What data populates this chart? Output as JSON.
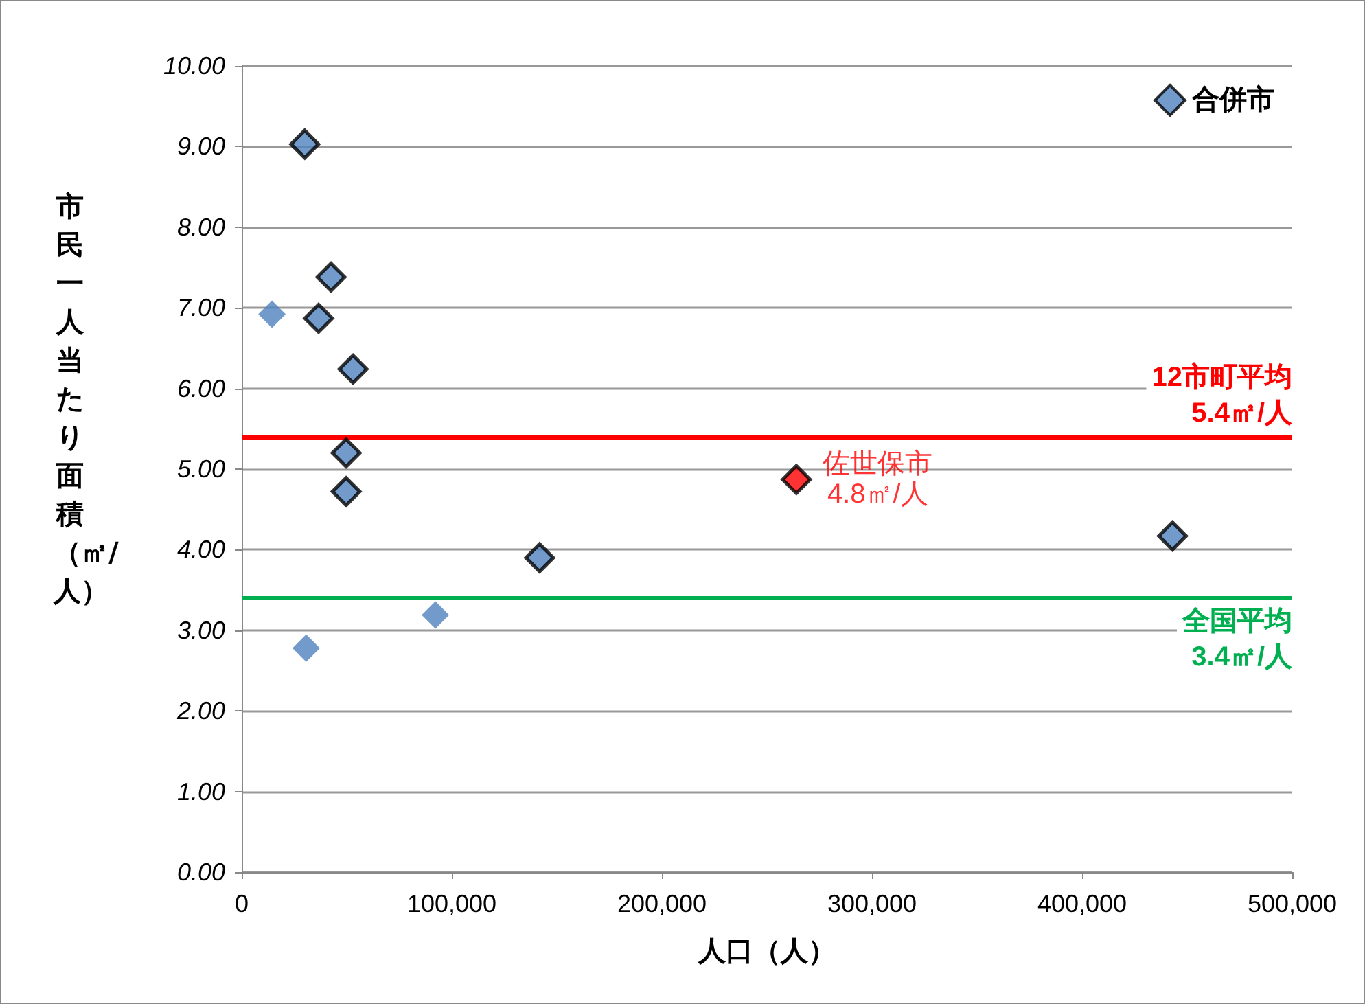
{
  "chart_data": {
    "type": "scatter",
    "xlabel": "人口（人）",
    "ylabel": "市民一人当たり面積（㎡/人）",
    "xlim": [
      0,
      500000
    ],
    "xticks": [
      {
        "value": 0,
        "label": "0"
      },
      {
        "value": 100000,
        "label": "100,000"
      },
      {
        "value": 200000,
        "label": "200,000"
      },
      {
        "value": 300000,
        "label": "300,000"
      },
      {
        "value": 400000,
        "label": "400,000"
      },
      {
        "value": 500000,
        "label": "500,000"
      }
    ],
    "ylim": [
      0,
      10
    ],
    "yticks": [
      {
        "value": 0,
        "label": "0.00"
      },
      {
        "value": 1,
        "label": "1.00"
      },
      {
        "value": 2,
        "label": "2.00"
      },
      {
        "value": 3,
        "label": "3.00"
      },
      {
        "value": 4,
        "label": "4.00"
      },
      {
        "value": 5,
        "label": "5.00"
      },
      {
        "value": 6,
        "label": "6.00"
      },
      {
        "value": 7,
        "label": "7.00"
      },
      {
        "value": 8,
        "label": "8.00"
      },
      {
        "value": 9,
        "label": "9.00"
      },
      {
        "value": 10,
        "label": "10.00"
      }
    ],
    "grid": "y",
    "legend": "top right",
    "marker": "diamond",
    "series": [
      {
        "name": "合併市",
        "color": "#4f81bd",
        "x": [
          30000,
          42500,
          36600,
          53000,
          49700,
          49700,
          141800,
          443000
        ],
        "values": [
          9.03,
          7.38,
          6.87,
          6.24,
          5.2,
          4.72,
          3.9,
          4.17
        ]
      },
      {
        "color": "#4f81bd",
        "x": [
          14400,
          30700,
          92200
        ],
        "values": [
          6.92,
          2.78,
          3.19
        ]
      },
      {
        "color": "#ff0000",
        "x": [
          264000
        ],
        "values": [
          4.87
        ]
      }
    ],
    "annotations": [
      {
        "text": "佐世保市\n4.8㎡/人",
        "x": 264000,
        "y": 4.87
      }
    ],
    "ref_lines": [
      {
        "axis": "y",
        "value": 5.4,
        "label": "12市町平均\n5.4㎡/人",
        "color": "#ff0000"
      },
      {
        "axis": "y",
        "value": 3.4,
        "label": "全国平均\n3.4㎡/人",
        "color": "#00b050"
      }
    ]
  }
}
